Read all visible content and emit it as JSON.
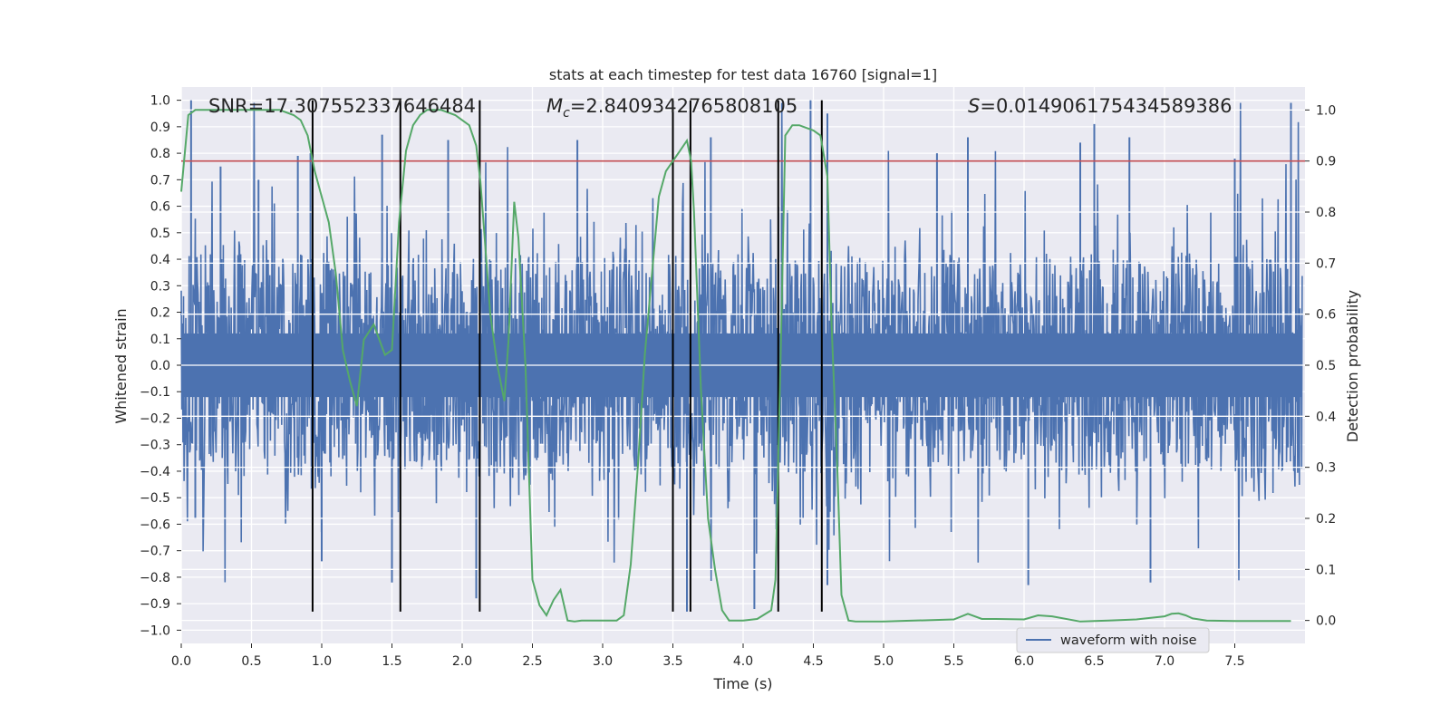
{
  "chart_data": {
    "type": "line",
    "title": "stats at each timestep for test data 16760 [signal=1]",
    "xlabel": "Time (s)",
    "ylabel": "Whitened strain",
    "y2label": "Detection probability",
    "xlim": [
      0.0,
      8.0
    ],
    "ylim": [
      -1.05,
      1.05
    ],
    "y2lim": [
      -0.045,
      1.045
    ],
    "x_ticks": [
      0.0,
      0.5,
      1.0,
      1.5,
      2.0,
      2.5,
      3.0,
      3.5,
      4.0,
      4.5,
      5.0,
      5.5,
      6.0,
      6.5,
      7.0,
      7.5
    ],
    "x_tick_labels": [
      "0.0",
      "0.5",
      "1.0",
      "1.5",
      "2.0",
      "2.5",
      "3.0",
      "3.5",
      "4.0",
      "4.5",
      "5.0",
      "5.5",
      "6.0",
      "6.5",
      "7.0",
      "7.5"
    ],
    "y_ticks": [
      -1.0,
      -0.9,
      -0.8,
      -0.7,
      -0.6,
      -0.5,
      -0.4,
      -0.3,
      -0.2,
      -0.1,
      0.0,
      0.1,
      0.2,
      0.3,
      0.4,
      0.5,
      0.6,
      0.7,
      0.8,
      0.9,
      1.0
    ],
    "y_tick_labels": [
      "−1.0",
      "−0.9",
      "−0.8",
      "−0.7",
      "−0.6",
      "−0.5",
      "−0.4",
      "−0.3",
      "−0.2",
      "−0.1",
      "0.0",
      "0.1",
      "0.2",
      "0.3",
      "0.4",
      "0.5",
      "0.6",
      "0.7",
      "0.8",
      "0.9",
      "1.0"
    ],
    "y2_ticks": [
      0.0,
      0.1,
      0.2,
      0.3,
      0.4,
      0.5,
      0.6,
      0.7,
      0.8,
      0.9,
      1.0
    ],
    "y2_tick_labels": [
      "0.0",
      "0.1",
      "0.2",
      "0.3",
      "0.4",
      "0.5",
      "0.6",
      "0.7",
      "0.8",
      "0.9",
      "1.0"
    ],
    "grid": true,
    "legend": {
      "position": "lower-right",
      "entries": [
        "waveform with noise"
      ]
    },
    "annotations": {
      "snr": "SNR=17.307552337646484",
      "mc_symbol": "M",
      "mc_sub": "c",
      "mc_value": "=2.8409342765808105",
      "s_symbol": "S",
      "s_value": "=0.014906175434589386"
    },
    "threshold": {
      "value": 0.9,
      "color": "#c44e52"
    },
    "vertical_lines": [
      0.935,
      1.56,
      2.125,
      3.5,
      3.625,
      4.25,
      4.56
    ],
    "vertical_lines_range": [
      -0.93,
      1.0
    ],
    "series": [
      {
        "name": "waveform with noise",
        "axis": "left",
        "color": "#4c72b0",
        "generated_noise": {
          "samples": 2000,
          "base_amplitude": 0.44,
          "tail_amplitude": 0.72,
          "max_abs": 0.99,
          "seed": 16760
        },
        "peaks": [
          [
            0.07,
            1.0
          ],
          [
            0.1,
            -0.58
          ],
          [
            0.28,
            0.75
          ],
          [
            0.55,
            0.7
          ],
          [
            0.83,
            0.79
          ],
          [
            0.92,
            0.8
          ],
          [
            1.0,
            -0.74
          ],
          [
            1.43,
            0.87
          ],
          [
            1.5,
            -0.82
          ],
          [
            1.9,
            0.85
          ],
          [
            2.1,
            -0.88
          ],
          [
            2.82,
            0.85
          ],
          [
            3.5,
            0.91
          ],
          [
            3.6,
            -0.93
          ],
          [
            3.77,
            0.86
          ],
          [
            4.08,
            -0.92
          ],
          [
            4.48,
            1.0
          ],
          [
            4.6,
            0.95
          ],
          [
            4.6,
            -0.83
          ],
          [
            5.38,
            0.8
          ],
          [
            5.6,
            0.86
          ],
          [
            6.03,
            -0.83
          ],
          [
            6.4,
            0.84
          ],
          [
            6.5,
            0.91
          ],
          [
            6.75,
            0.86
          ],
          [
            6.9,
            -0.82
          ],
          [
            7.5,
            0.78
          ],
          [
            7.9,
            0.99
          ]
        ]
      },
      {
        "name": "detection probability",
        "axis": "right",
        "color": "#55a868",
        "x": [
          0.0,
          0.05,
          0.1,
          0.2,
          0.4,
          0.6,
          0.7,
          0.8,
          0.85,
          0.9,
          0.95,
          1.0,
          1.05,
          1.1,
          1.15,
          1.2,
          1.25,
          1.3,
          1.37,
          1.45,
          1.5,
          1.55,
          1.6,
          1.65,
          1.7,
          1.75,
          1.85,
          1.95,
          2.05,
          2.1,
          2.13,
          2.16,
          2.2,
          2.25,
          2.3,
          2.33,
          2.37,
          2.4,
          2.45,
          2.5,
          2.55,
          2.6,
          2.65,
          2.7,
          2.75,
          2.8,
          2.85,
          3.0,
          3.1,
          3.15,
          3.2,
          3.25,
          3.3,
          3.4,
          3.45,
          3.5,
          3.55,
          3.6,
          3.63,
          3.65,
          3.7,
          3.75,
          3.8,
          3.85,
          3.9,
          4.0,
          4.1,
          4.2,
          4.23,
          4.27,
          4.3,
          4.35,
          4.4,
          4.5,
          4.55,
          4.6,
          4.63,
          4.67,
          4.7,
          4.75,
          4.8,
          4.9,
          5.0,
          5.5,
          5.6,
          5.7,
          5.8,
          6.0,
          6.1,
          6.2,
          6.4,
          6.6,
          6.8,
          7.0,
          7.05,
          7.1,
          7.15,
          7.2,
          7.3,
          7.5,
          7.9
        ],
        "y": [
          0.84,
          0.99,
          1.0,
          1.0,
          1.0,
          1.0,
          1.0,
          0.99,
          0.98,
          0.95,
          0.88,
          0.83,
          0.78,
          0.68,
          0.53,
          0.47,
          0.42,
          0.55,
          0.58,
          0.52,
          0.53,
          0.78,
          0.92,
          0.97,
          0.99,
          1.0,
          1.0,
          0.99,
          0.97,
          0.93,
          0.86,
          0.75,
          0.6,
          0.5,
          0.43,
          0.55,
          0.82,
          0.75,
          0.5,
          0.08,
          0.03,
          0.01,
          0.04,
          0.06,
          0.0,
          -0.002,
          0.0,
          0.0,
          0.0,
          0.01,
          0.11,
          0.3,
          0.52,
          0.83,
          0.88,
          0.9,
          0.92,
          0.94,
          0.9,
          0.8,
          0.45,
          0.2,
          0.1,
          0.02,
          0.0,
          0.0,
          0.003,
          0.02,
          0.08,
          0.55,
          0.95,
          0.97,
          0.97,
          0.96,
          0.95,
          0.87,
          0.58,
          0.3,
          0.05,
          0.0,
          -0.002,
          -0.002,
          -0.002,
          0.002,
          0.013,
          0.003,
          0.003,
          0.002,
          0.01,
          0.008,
          -0.002,
          0.0,
          0.002,
          0.008,
          0.013,
          0.014,
          0.01,
          0.004,
          0.0,
          -0.001,
          -0.001
        ]
      }
    ]
  }
}
